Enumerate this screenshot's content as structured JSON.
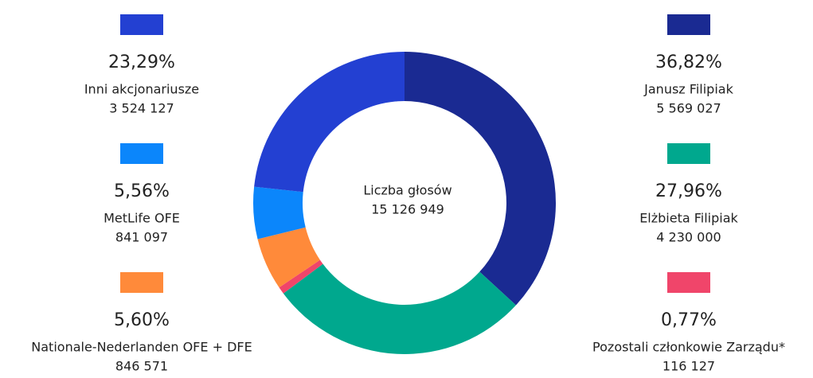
{
  "chart_data": {
    "type": "donut",
    "center_title": "Liczba głosów",
    "total": 15126949,
    "total_label": "15 126 949",
    "categories": [
      "Janusz Filipiak",
      "Elżbieta Filipiak",
      "Pozostali członkowie Zarządu*",
      "Nationale-Nederlanden OFE + DFE",
      "MetLife OFE",
      "Inni akcjonariusze"
    ],
    "values": [
      36.82,
      27.96,
      0.77,
      5.6,
      5.56,
      23.29
    ],
    "value_labels": [
      "36,82%",
      "27,96%",
      "0,77%",
      "5,60%",
      "5,56%",
      "23,29%"
    ],
    "counts": [
      5569027,
      4230000,
      116127,
      846571,
      841097,
      3524127
    ],
    "count_labels": [
      "5 569 027",
      "4 230 000",
      "116 127",
      "846 571",
      "841 097",
      "3 524 127"
    ],
    "colors": [
      "#1a2a92",
      "#00a88e",
      "#f0456a",
      "#ff8a3a",
      "#0b86fb",
      "#2340d2"
    ]
  }
}
